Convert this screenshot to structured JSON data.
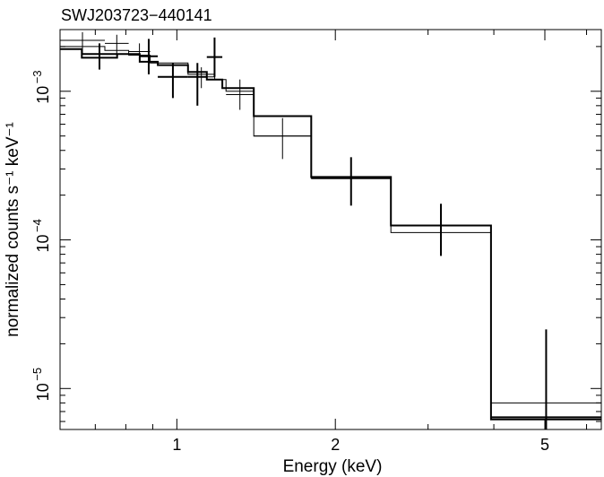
{
  "chart_data": {
    "type": "line",
    "title": "SWJ203723−440141",
    "xlabel": "Energy (keV)",
    "ylabel": "normalized counts s⁻¹ keV⁻¹",
    "x_scale": "log",
    "y_scale": "log",
    "xlim": [
      0.6,
      6.4
    ],
    "ylim": [
      5.3e-06,
      0.0026
    ],
    "x_ticks": [
      {
        "value": 1,
        "label": "1"
      },
      {
        "value": 2,
        "label": "2"
      },
      {
        "value": 5,
        "label": "5"
      }
    ],
    "y_ticks": [
      {
        "value": 1e-05,
        "base": "10",
        "exp": "−5"
      },
      {
        "value": 0.0001,
        "base": "10",
        "exp": "−4"
      },
      {
        "value": 0.001,
        "base": "10",
        "exp": "−3"
      }
    ],
    "grid": false,
    "series": [
      {
        "style": "thin",
        "data": [
          {
            "xlo": 0.6,
            "xhi": 0.73,
            "y": 0.0022,
            "ylo": 0.0018,
            "yhi": 0.0025
          },
          {
            "xlo": 0.73,
            "xhi": 0.81,
            "y": 0.0021,
            "ylo": 0.00175,
            "yhi": 0.0024
          },
          {
            "xlo": 0.81,
            "xhi": 0.89,
            "y": 0.00185,
            "ylo": 0.0016,
            "yhi": 0.0021
          },
          {
            "xlo": 1.05,
            "xhi": 1.18,
            "y": 0.00125,
            "ylo": 0.00105,
            "yhi": 0.00145
          },
          {
            "xlo": 1.24,
            "xhi": 1.4,
            "y": 0.00095,
            "ylo": 0.00075,
            "yhi": 0.0012
          },
          {
            "xlo": 1.4,
            "xhi": 1.8,
            "y": 0.0005,
            "ylo": 0.00035,
            "yhi": 0.00066
          }
        ],
        "model": [
          {
            "xlo": 0.6,
            "xhi": 0.73,
            "y": 0.002
          },
          {
            "xlo": 0.73,
            "xhi": 0.81,
            "y": 0.00188
          },
          {
            "xlo": 0.81,
            "xhi": 0.89,
            "y": 0.00175
          },
          {
            "xlo": 0.89,
            "xhi": 1.05,
            "y": 0.00155
          },
          {
            "xlo": 1.05,
            "xhi": 1.18,
            "y": 0.0013
          },
          {
            "xlo": 1.18,
            "xhi": 1.24,
            "y": 0.0012
          },
          {
            "xlo": 1.24,
            "xhi": 1.4,
            "y": 0.001
          },
          {
            "xlo": 1.4,
            "xhi": 1.8,
            "y": 0.0005
          },
          {
            "xlo": 1.8,
            "xhi": 2.55,
            "y": 0.00026
          },
          {
            "xlo": 2.55,
            "xhi": 3.95,
            "y": 0.000112
          },
          {
            "xlo": 3.95,
            "xhi": 6.4,
            "y": 8e-06
          }
        ]
      },
      {
        "style": "thick",
        "data": [
          {
            "xlo": 0.66,
            "xhi": 0.77,
            "y": 0.00178,
            "ylo": 0.0014,
            "yhi": 0.0021
          },
          {
            "xlo": 0.85,
            "xhi": 0.92,
            "y": 0.00172,
            "ylo": 0.0013,
            "yhi": 0.00225
          },
          {
            "xlo": 0.92,
            "xhi": 1.05,
            "y": 0.00125,
            "ylo": 0.0009,
            "yhi": 0.00155
          },
          {
            "xlo": 1.05,
            "xhi": 1.14,
            "y": 0.00125,
            "ylo": 0.0008,
            "yhi": 0.00155
          },
          {
            "xlo": 1.14,
            "xhi": 1.22,
            "y": 0.0017,
            "ylo": 0.00125,
            "yhi": 0.0023
          },
          {
            "xlo": 1.8,
            "xhi": 2.55,
            "y": 0.00026,
            "ylo": 0.00017,
            "yhi": 0.00036
          },
          {
            "xlo": 2.55,
            "xhi": 3.95,
            "y": 0.000125,
            "ylo": 7.8e-05,
            "yhi": 0.000175
          },
          {
            "xlo": 3.95,
            "xhi": 6.4,
            "y": 6.4e-06,
            "ylo": 5.3e-06,
            "yhi": 2.5e-05
          }
        ],
        "model": [
          {
            "xlo": 0.6,
            "xhi": 0.66,
            "y": 0.00192
          },
          {
            "xlo": 0.66,
            "xhi": 0.77,
            "y": 0.00168
          },
          {
            "xlo": 0.77,
            "xhi": 0.85,
            "y": 0.00178
          },
          {
            "xlo": 0.85,
            "xhi": 0.92,
            "y": 0.00158
          },
          {
            "xlo": 0.92,
            "xhi": 1.05,
            "y": 0.0015
          },
          {
            "xlo": 1.05,
            "xhi": 1.14,
            "y": 0.00135
          },
          {
            "xlo": 1.14,
            "xhi": 1.22,
            "y": 0.0012
          },
          {
            "xlo": 1.22,
            "xhi": 1.4,
            "y": 0.00105
          },
          {
            "xlo": 1.4,
            "xhi": 1.8,
            "y": 0.00068
          },
          {
            "xlo": 1.8,
            "xhi": 2.55,
            "y": 0.000265
          },
          {
            "xlo": 2.55,
            "xhi": 3.95,
            "y": 0.000125
          },
          {
            "xlo": 3.95,
            "xhi": 6.4,
            "y": 6.2e-06
          }
        ]
      }
    ]
  }
}
